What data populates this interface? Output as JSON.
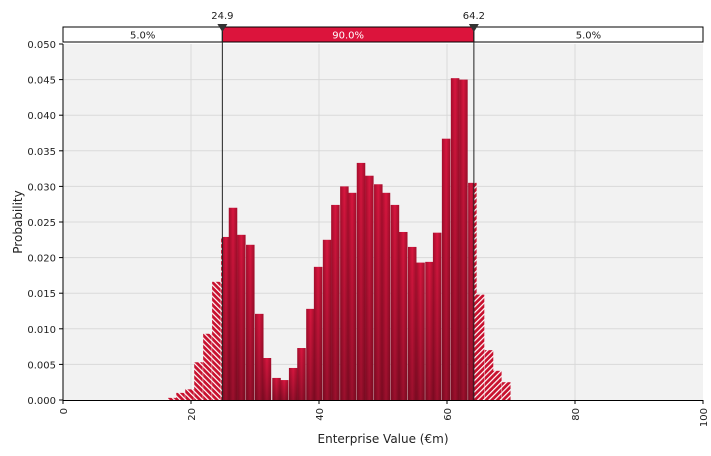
{
  "chart_data": {
    "type": "bar",
    "title": "",
    "xlabel": "Enterprise Value (€m)",
    "ylabel": "Probability",
    "xlim": [
      0,
      100
    ],
    "ylim": [
      0,
      0.05
    ],
    "x_ticks": [
      "0",
      "20",
      "40",
      "60",
      "80",
      "100"
    ],
    "y_ticks": [
      "0.000",
      "0.005",
      "0.010",
      "0.015",
      "0.020",
      "0.025",
      "0.030",
      "0.035",
      "0.040",
      "0.045",
      "0.050"
    ],
    "grid": true,
    "bin_width": 1.33,
    "bins": [
      {
        "x0": 16.4,
        "p": 0.0003
      },
      {
        "x0": 17.7,
        "p": 0.001
      },
      {
        "x0": 19.1,
        "p": 0.0015
      },
      {
        "x0": 20.5,
        "p": 0.0053
      },
      {
        "x0": 21.9,
        "p": 0.0093
      },
      {
        "x0": 23.3,
        "p": 0.0166
      },
      {
        "x0": 24.7,
        "p": 0.0229
      },
      {
        "x0": 25.9,
        "p": 0.027
      },
      {
        "x0": 27.2,
        "p": 0.0232
      },
      {
        "x0": 28.6,
        "p": 0.0218
      },
      {
        "x0": 30.0,
        "p": 0.0121
      },
      {
        "x0": 31.2,
        "p": 0.0059
      },
      {
        "x0": 32.7,
        "p": 0.0031
      },
      {
        "x0": 33.9,
        "p": 0.0028
      },
      {
        "x0": 35.3,
        "p": 0.0045
      },
      {
        "x0": 36.6,
        "p": 0.0073
      },
      {
        "x0": 38.0,
        "p": 0.0128
      },
      {
        "x0": 39.2,
        "p": 0.0187
      },
      {
        "x0": 40.6,
        "p": 0.0225
      },
      {
        "x0": 41.9,
        "p": 0.0274
      },
      {
        "x0": 43.3,
        "p": 0.03
      },
      {
        "x0": 44.5,
        "p": 0.0291
      },
      {
        "x0": 45.9,
        "p": 0.0333
      },
      {
        "x0": 47.2,
        "p": 0.0315
      },
      {
        "x0": 48.6,
        "p": 0.0303
      },
      {
        "x0": 49.8,
        "p": 0.0291
      },
      {
        "x0": 51.2,
        "p": 0.0274
      },
      {
        "x0": 52.5,
        "p": 0.0236
      },
      {
        "x0": 53.9,
        "p": 0.0215
      },
      {
        "x0": 55.2,
        "p": 0.0193
      },
      {
        "x0": 56.6,
        "p": 0.0194
      },
      {
        "x0": 57.8,
        "p": 0.0235
      },
      {
        "x0": 59.2,
        "p": 0.0367
      },
      {
        "x0": 60.6,
        "p": 0.0452
      },
      {
        "x0": 61.9,
        "p": 0.045
      },
      {
        "x0": 63.3,
        "p": 0.0305
      },
      {
        "x0": 64.5,
        "p": 0.0148
      },
      {
        "x0": 65.9,
        "p": 0.007
      },
      {
        "x0": 67.2,
        "p": 0.0041
      },
      {
        "x0": 68.6,
        "p": 0.0025
      }
    ],
    "delimiters": {
      "left": {
        "value": 24.9,
        "label": "24.9"
      },
      "right": {
        "value": 64.2,
        "label": "64.2"
      }
    },
    "regions": [
      {
        "label": "5.0%",
        "fill": "#ffffff"
      },
      {
        "label": "90.0%",
        "fill": "#dc143c"
      },
      {
        "label": "5.0%",
        "fill": "#ffffff"
      }
    ],
    "bar_color": "#c8102e",
    "bar_color_dark": "#8b0a24",
    "background": "#f2f2f2"
  }
}
